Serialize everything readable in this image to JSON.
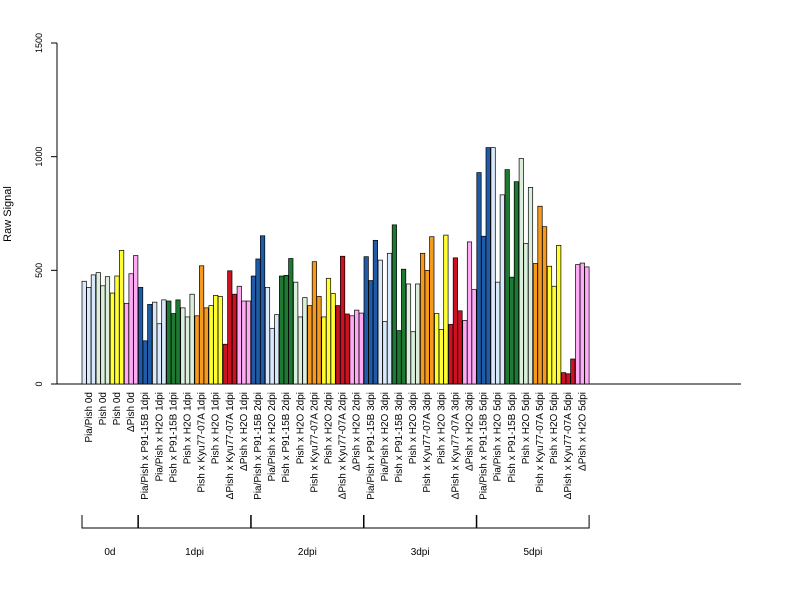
{
  "chart_data": {
    "type": "bar",
    "ylabel": "Raw Signal",
    "ylim": [
      0,
      1500
    ],
    "yticks": [
      0,
      500,
      1000,
      1500
    ],
    "grid": false,
    "categories": [
      "Pia/Pish 0d",
      "Pish 0d",
      "Pish 0d",
      "ΔPish 0d",
      "Pia/Pish x P91-15B 1dpi",
      "Pia/Pish x H2O 1dpi",
      "Pish x P91-15B 1dpi",
      "Pish x H2O 1dpi",
      "Pish x Kyu77-07A 1dpi",
      "Pish x H2O 1dpi",
      "ΔPish x Kyu77-07A 1dpi",
      "ΔPish x H2O 1dpi",
      "Pia/Pish x P91-15B 2dpi",
      "Pia/Pish x H2O 2dpi",
      "Pish x P91-15B 2dpi",
      "Pish x H2O 2dpi",
      "Pish x Kyu77-07A 2dpi",
      "Pish x H2O 2dpi",
      "ΔPish x Kyu77-07A 2dpi",
      "ΔPish x H2O 2dpi",
      "Pia/Pish x P91-15B 3dpi",
      "Pia/Pish x H2O 3dpi",
      "Pish x P91-15B 3dpi",
      "Pish x H2O 3dpi",
      "Pish x Kyu77-07A 3dpi",
      "Pish x H2O 3dpi",
      "ΔPish x Kyu77-07A 3dpi",
      "ΔPish x H2O 3dpi",
      "Pia/Pish x P91-15B 5dpi",
      "Pia/Pish x H2O 5dpi",
      "Pish x P91-15B 5dpi",
      "Pish x H2O 5dpi",
      "Pish x Kyu77-07A 5dpi",
      "Pish x H2O 5dpi",
      "ΔPish x Kyu77-07A 5dpi",
      "ΔPish x H2O 5dpi"
    ],
    "values": [
      [
        452,
        425,
        480
      ],
      [
        490,
        432,
        472
      ],
      [
        400,
        475,
        588
      ],
      [
        355,
        485,
        565
      ],
      [
        425,
        190,
        350
      ],
      [
        360,
        265,
        370
      ],
      [
        365,
        310,
        370
      ],
      [
        335,
        295,
        395
      ],
      [
        300,
        520,
        335
      ],
      [
        345,
        390,
        385
      ],
      [
        175,
        498,
        395
      ],
      [
        430,
        365,
        365
      ],
      [
        475,
        550,
        652
      ],
      [
        425,
        245,
        305
      ],
      [
        475,
        478,
        552
      ],
      [
        448,
        295,
        380
      ],
      [
        345,
        538,
        385
      ],
      [
        295,
        465,
        398
      ],
      [
        345,
        562,
        308
      ],
      [
        300,
        325,
        312
      ],
      [
        560,
        455,
        632
      ],
      [
        545,
        275,
        575
      ],
      [
        700,
        235,
        505
      ],
      [
        440,
        230,
        440
      ],
      [
        575,
        500,
        648
      ],
      [
        310,
        240,
        655
      ],
      [
        262,
        555,
        322
      ],
      [
        280,
        625,
        415
      ],
      [
        930,
        650,
        1040
      ],
      [
        1040,
        448,
        832
      ],
      [
        943,
        470,
        890
      ],
      [
        992,
        618,
        865
      ],
      [
        530,
        782,
        692
      ],
      [
        518,
        430,
        610
      ],
      [
        50,
        45,
        110
      ],
      [
        525,
        532,
        515
      ]
    ],
    "bar_colors": [
      "#dae8fc",
      "#dcefdc",
      "#ffff33",
      "#ffaaf5",
      "#1f5ba6",
      "#dae8fc",
      "#1e7a32",
      "#dcefdc",
      "#f59a1f",
      "#ffff33",
      "#cc1122",
      "#ffaaf5",
      "#1f5ba6",
      "#dae8fc",
      "#1e7a32",
      "#dcefdc",
      "#f59a1f",
      "#ffff33",
      "#cc1122",
      "#ffaaf5",
      "#1f5ba6",
      "#dae8fc",
      "#1e7a32",
      "#dcefdc",
      "#f59a1f",
      "#ffff33",
      "#cc1122",
      "#ffaaf5",
      "#1f5ba6",
      "#dae8fc",
      "#1e7a32",
      "#dcefdc",
      "#f59a1f",
      "#ffff33",
      "#cc1122",
      "#ffaaf5"
    ],
    "groups": [
      {
        "label": "0d",
        "start": 0,
        "end": 3
      },
      {
        "label": "1dpi",
        "start": 4,
        "end": 11
      },
      {
        "label": "2dpi",
        "start": 12,
        "end": 19
      },
      {
        "label": "3dpi",
        "start": 20,
        "end": 27
      },
      {
        "label": "5dpi",
        "start": 28,
        "end": 35
      }
    ]
  }
}
